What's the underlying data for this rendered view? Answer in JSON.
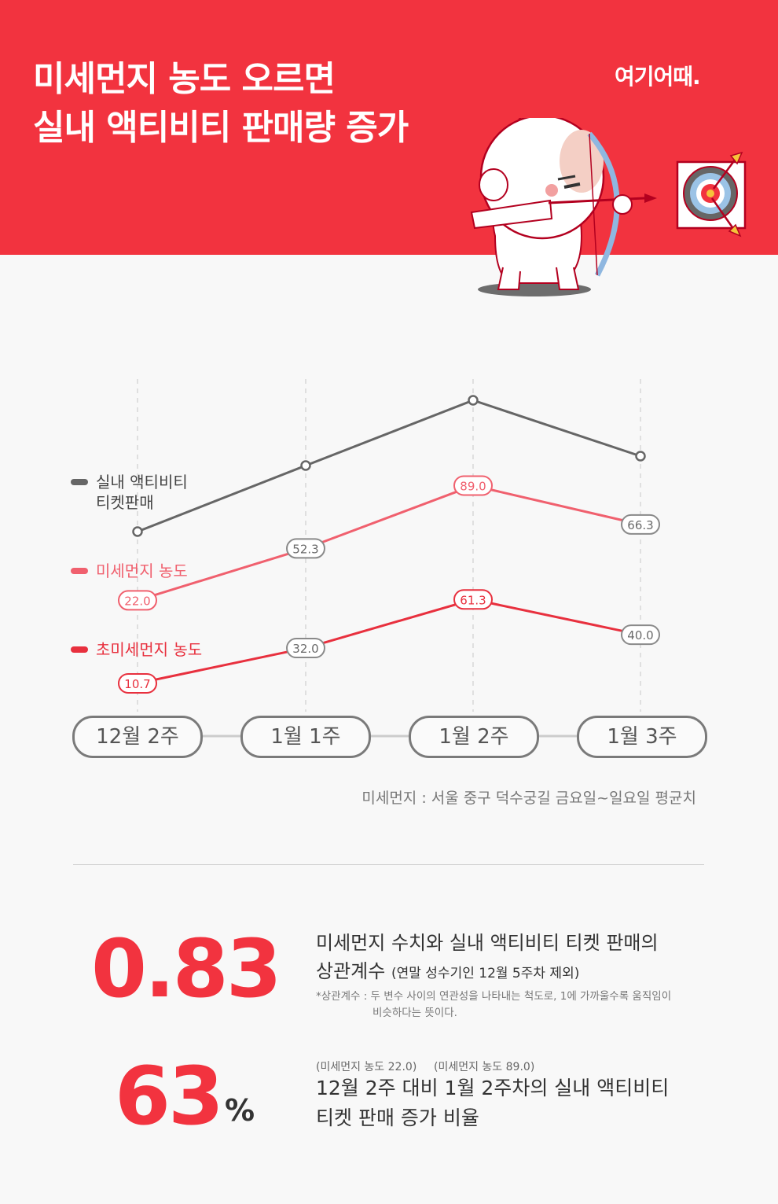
{
  "header": {
    "title_line1": "미세먼지 농도 오르면",
    "title_line2": "실내 액티비티 판매량 증가",
    "logo": "여기어때.",
    "colors": {
      "brand_red": "#f2333f",
      "white": "#ffffff"
    }
  },
  "chart_data": {
    "type": "line",
    "categories": [
      "12월 2주",
      "1월 1주",
      "1월 2주",
      "1월 3주"
    ],
    "series": [
      {
        "name": "실내 액티비티 티켓판매",
        "values": [
          null,
          null,
          null,
          null
        ],
        "color": "#666666",
        "labeled": false
      },
      {
        "name": "미세먼지 농도",
        "values": [
          22.0,
          52.3,
          89.0,
          66.3
        ],
        "labels": [
          "22.0",
          "52.3",
          "89.0",
          "66.3"
        ],
        "color": "#f0606e",
        "labeled": true
      },
      {
        "name": "초미세먼지 농도",
        "values": [
          10.7,
          32.0,
          61.3,
          40.0
        ],
        "labels": [
          "10.7",
          "32.0",
          "61.3",
          "40.0"
        ],
        "color": "#e8303e",
        "labeled": true
      }
    ],
    "legend": {
      "position": "left",
      "items": [
        {
          "line1": "실내 액티비티",
          "line2": "티켓판매",
          "color": "#666666"
        },
        {
          "line1": "미세먼지 농도",
          "line2": "",
          "color": "#f0606e"
        },
        {
          "line1": "초미세먼지 농도",
          "line2": "",
          "color": "#e8303e"
        }
      ]
    },
    "grid": "vertical dashed"
  },
  "source_note": "미세먼지 : 서울 중구 덕수궁길 금요일~일요일 평균치",
  "stats": {
    "correlation": {
      "value": "0.83",
      "line1": "미세먼지 수치와 실내 액티비티 티켓 판매의",
      "line2_main": "상관계수",
      "line2_paren": "(연말 성수기인 12월 5주차 제외)",
      "note_line1": "*상관계수 : 두 변수 사이의 연관성을 나타내는 척도로, 1에 가까울수록 움직임이",
      "note_line2": "비슷하다는 뜻이다."
    },
    "increase": {
      "value": "63",
      "unit": "%",
      "note_a": "(미세먼지 농도 22.0)",
      "note_b": "(미세먼지 농도 89.0)",
      "line1": "12월 2주 대비 1월 2주차의 실내 액티비티",
      "line2": "티켓 판매 증가 비율"
    }
  }
}
